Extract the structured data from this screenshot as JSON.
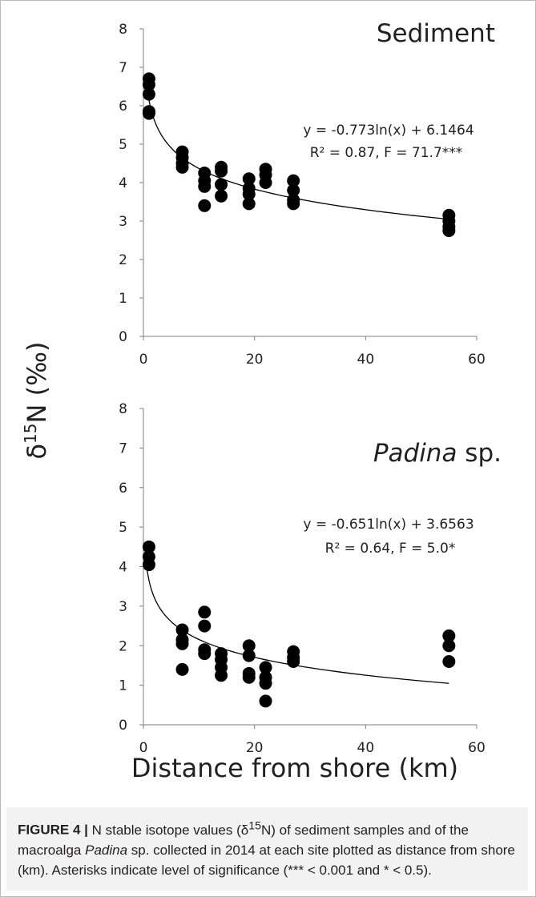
{
  "figure": {
    "y_axis_label": "δ15N (‰)",
    "x_axis_label": "Distance from shore (km)",
    "caption": {
      "label": "FIGURE 4 |",
      "text": " N stable isotope values (δ15N) of sediment samples and of the macroalga Padina sp. collected in 2014 at each site plotted as distance from shore (km). Asterisks indicate level of significance (*** < 0.001 and * < 0.5)."
    }
  },
  "chart_data": [
    {
      "type": "scatter",
      "title": "Sediment",
      "xlim": [
        0,
        60
      ],
      "ylim": [
        0,
        8
      ],
      "x_ticks": [
        0,
        20,
        40,
        60
      ],
      "y_ticks": [
        0,
        1,
        2,
        3,
        4,
        5,
        6,
        7,
        8
      ],
      "grid": false,
      "equation": "y = -0.773ln(x) + 6.1464",
      "stats": "R² = 0.87, F = 71.7***",
      "trendline": {
        "type": "logarithmic",
        "a": -0.773,
        "b": 6.1464,
        "x_range": [
          0.5,
          55
        ]
      },
      "points": [
        [
          1,
          6.7
        ],
        [
          1,
          6.55
        ],
        [
          1,
          6.3
        ],
        [
          1,
          5.85
        ],
        [
          1,
          5.8
        ],
        [
          7,
          4.8
        ],
        [
          7,
          4.65
        ],
        [
          7,
          4.5
        ],
        [
          7,
          4.4
        ],
        [
          11,
          4.25
        ],
        [
          11,
          4.05
        ],
        [
          11,
          3.9
        ],
        [
          11,
          3.4
        ],
        [
          14,
          4.4
        ],
        [
          14,
          4.3
        ],
        [
          14,
          3.95
        ],
        [
          14,
          3.65
        ],
        [
          19,
          4.1
        ],
        [
          19,
          3.85
        ],
        [
          19,
          3.7
        ],
        [
          19,
          3.45
        ],
        [
          22,
          4.35
        ],
        [
          22,
          4.2
        ],
        [
          22,
          4.0
        ],
        [
          27,
          4.05
        ],
        [
          27,
          3.8
        ],
        [
          27,
          3.55
        ],
        [
          27,
          3.45
        ],
        [
          55,
          3.15
        ],
        [
          55,
          3.0
        ],
        [
          55,
          2.85
        ],
        [
          55,
          2.75
        ]
      ]
    },
    {
      "type": "scatter",
      "title": "Padina sp.",
      "xlim": [
        0,
        60
      ],
      "ylim": [
        0,
        8
      ],
      "x_ticks": [
        0,
        20,
        40,
        60
      ],
      "y_ticks": [
        0,
        1,
        2,
        3,
        4,
        5,
        6,
        7,
        8
      ],
      "grid": false,
      "equation": "y = -0.651ln(x) + 3.6563",
      "stats": "R² = 0.64, F = 5.0*",
      "trendline": {
        "type": "logarithmic",
        "a": -0.651,
        "b": 3.6563,
        "x_range": [
          0.5,
          55
        ]
      },
      "points": [
        [
          1,
          4.5
        ],
        [
          1,
          4.25
        ],
        [
          1,
          4.05
        ],
        [
          7,
          2.4
        ],
        [
          7,
          2.15
        ],
        [
          7,
          2.05
        ],
        [
          7,
          1.4
        ],
        [
          11,
          2.85
        ],
        [
          11,
          2.5
        ],
        [
          11,
          1.9
        ],
        [
          11,
          1.8
        ],
        [
          14,
          1.8
        ],
        [
          14,
          1.65
        ],
        [
          14,
          1.45
        ],
        [
          14,
          1.25
        ],
        [
          19,
          2.0
        ],
        [
          19,
          1.75
        ],
        [
          19,
          1.3
        ],
        [
          19,
          1.2
        ],
        [
          22,
          1.45
        ],
        [
          22,
          1.2
        ],
        [
          22,
          1.05
        ],
        [
          22,
          0.6
        ],
        [
          27,
          1.85
        ],
        [
          27,
          1.7
        ],
        [
          27,
          1.6
        ],
        [
          55,
          2.25
        ],
        [
          55,
          2.0
        ],
        [
          55,
          1.6
        ]
      ]
    }
  ]
}
